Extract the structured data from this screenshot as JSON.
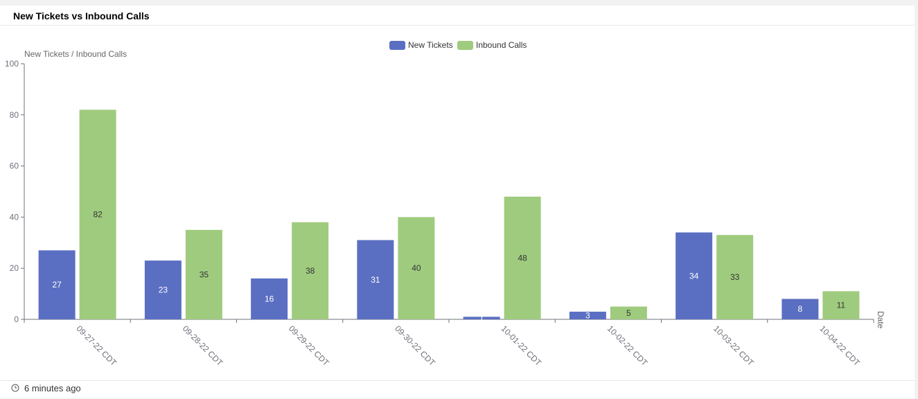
{
  "panel": {
    "title": "New Tickets vs Inbound Calls",
    "updated": "6 minutes ago"
  },
  "icons": {
    "footer": "clock-icon"
  },
  "chart_data": {
    "type": "bar",
    "title": "New Tickets vs Inbound Calls",
    "ylabel": "New Tickets / Inbound Calls",
    "xlabel": "Date",
    "ylim": [
      0,
      100
    ],
    "yticks": [
      0,
      20,
      40,
      60,
      80,
      100
    ],
    "legend": "top-center",
    "grid": false,
    "categories": [
      "09-27-22 CDT",
      "09-28-22 CDT",
      "09-29-22 CDT",
      "09-30-22 CDT",
      "10-01-22 CDT",
      "10-02-22 CDT",
      "10-03-22 CDT",
      "10-04-22 CDT"
    ],
    "series": [
      {
        "name": "New Tickets",
        "color": "#5b6fc2",
        "values": [
          27,
          23,
          16,
          31,
          1,
          3,
          34,
          8
        ]
      },
      {
        "name": "Inbound Calls",
        "color": "#9fcb7e",
        "values": [
          82,
          35,
          38,
          40,
          48,
          5,
          33,
          11
        ]
      }
    ]
  }
}
